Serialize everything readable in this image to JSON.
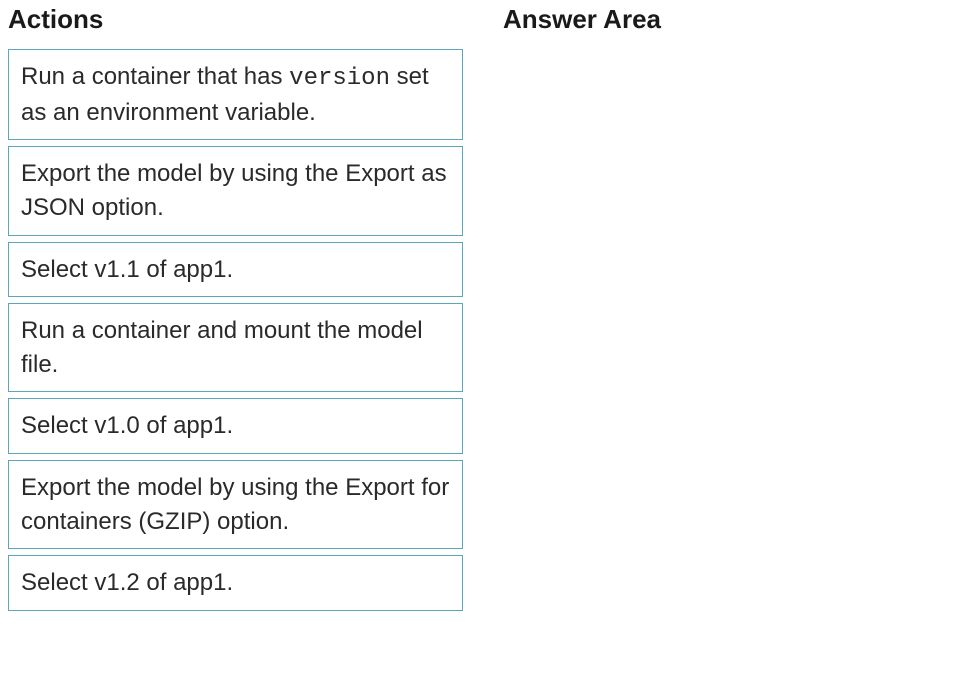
{
  "headings": {
    "actions": "Actions",
    "answer_area": "Answer Area"
  },
  "actions": [
    {
      "segments": [
        {
          "text": "Run a container that has ",
          "code": false
        },
        {
          "text": "version",
          "code": true
        },
        {
          "text": " set as an environment variable.",
          "code": false
        }
      ]
    },
    {
      "segments": [
        {
          "text": "Export the model by using the Export as JSON option.",
          "code": false
        }
      ]
    },
    {
      "segments": [
        {
          "text": "Select v1.1 of app1.",
          "code": false
        }
      ]
    },
    {
      "segments": [
        {
          "text": "Run a container and mount the model file.",
          "code": false
        }
      ]
    },
    {
      "segments": [
        {
          "text": "Select v1.0 of app1.",
          "code": false
        }
      ]
    },
    {
      "segments": [
        {
          "text": "Export the model by using the Export for containers (GZIP) option.",
          "code": false
        }
      ]
    },
    {
      "segments": [
        {
          "text": "Select v1.2 of app1.",
          "code": false
        }
      ]
    }
  ],
  "styling": {
    "item_border_color": "#5aa8b8",
    "item_bg_color": "#ffffff",
    "heading_color": "#1a1a1a",
    "text_color": "#2a2a2a",
    "heading_fontsize": 26,
    "item_fontsize": 24,
    "code_font": "Courier New"
  }
}
